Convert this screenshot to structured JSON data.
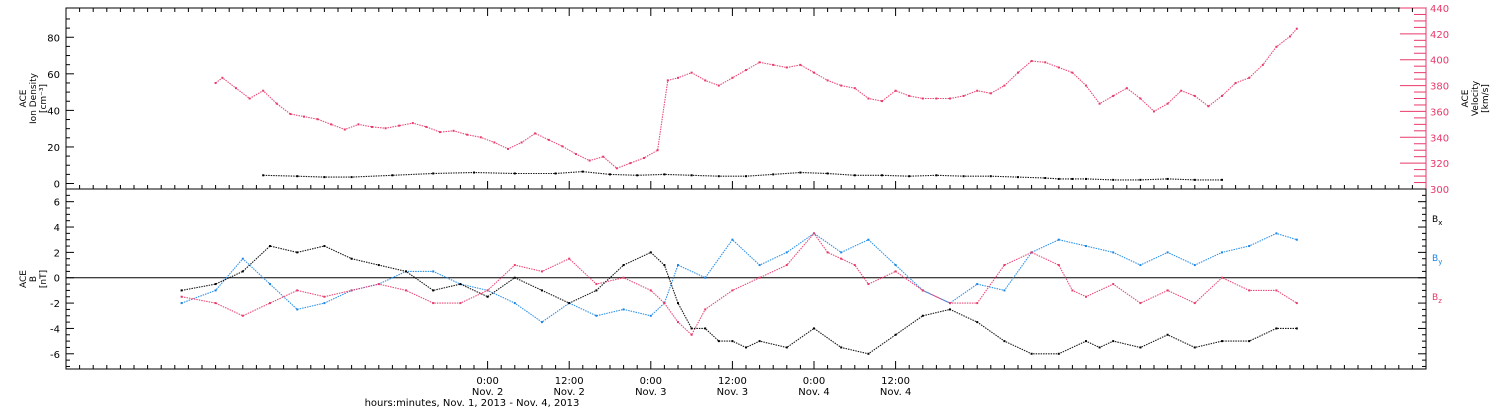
{
  "chart_data": [
    {
      "type": "scatter",
      "ylabel_lines": [
        "ACE",
        "Ion Density",
        "[cm⁻³]"
      ],
      "y2label_lines": [
        "ACE",
        "Velocity",
        "[km/s]"
      ],
      "ylim": [
        -3,
        96
      ],
      "yticks": [
        0,
        20,
        40,
        60,
        80
      ],
      "y2lim": [
        300,
        440
      ],
      "y2ticks": [
        300,
        320,
        340,
        360,
        380,
        400,
        420,
        440
      ],
      "series": [
        {
          "axis": "left",
          "color": "#000000",
          "points": [
            [
              -33,
              4.5
            ],
            [
              -28,
              4
            ],
            [
              -24,
              3.5
            ],
            [
              -20,
              3.5
            ],
            [
              -14,
              4.5
            ],
            [
              -8,
              5.5
            ],
            [
              -2,
              6
            ],
            [
              4,
              5.5
            ],
            [
              10,
              5.5
            ],
            [
              14,
              6.5
            ],
            [
              18,
              5
            ],
            [
              22,
              4.5
            ],
            [
              26,
              5
            ],
            [
              30,
              4.5
            ],
            [
              34,
              4
            ],
            [
              38,
              4
            ],
            [
              42,
              5
            ],
            [
              46,
              6
            ],
            [
              50,
              5.5
            ],
            [
              54,
              4.5
            ],
            [
              58,
              4.5
            ],
            [
              62,
              4
            ],
            [
              66,
              4.5
            ],
            [
              70,
              4
            ],
            [
              74,
              4
            ],
            [
              78,
              3.5
            ],
            [
              82,
              3
            ],
            [
              84,
              2.5
            ],
            [
              86,
              2.5
            ],
            [
              88,
              2.5
            ],
            [
              92,
              2
            ],
            [
              96,
              2
            ],
            [
              100,
              2.5
            ],
            [
              104,
              2
            ],
            [
              108,
              2
            ]
          ]
        },
        {
          "axis": "right",
          "color": "#e8396a",
          "points": [
            [
              -40,
              382
            ],
            [
              -39,
              386
            ],
            [
              -37,
              378
            ],
            [
              -35,
              370
            ],
            [
              -33,
              376
            ],
            [
              -31,
              366
            ],
            [
              -29,
              358
            ],
            [
              -27,
              356
            ],
            [
              -25,
              354
            ],
            [
              -23,
              350
            ],
            [
              -21,
              346
            ],
            [
              -19,
              350
            ],
            [
              -17,
              348
            ],
            [
              -15,
              347
            ],
            [
              -13,
              349
            ],
            [
              -11,
              351
            ],
            [
              -9,
              348
            ],
            [
              -7,
              344
            ],
            [
              -5,
              345
            ],
            [
              -3,
              342
            ],
            [
              -1,
              340
            ],
            [
              1,
              336
            ],
            [
              3,
              331
            ],
            [
              5,
              336
            ],
            [
              7,
              343
            ],
            [
              9,
              338
            ],
            [
              11,
              333
            ],
            [
              13,
              327
            ],
            [
              15,
              322
            ],
            [
              17,
              325
            ],
            [
              19,
              316
            ],
            [
              21,
              320
            ],
            [
              23,
              324
            ],
            [
              25,
              330
            ],
            [
              26.5,
              384
            ],
            [
              28,
              386
            ],
            [
              30,
              390
            ],
            [
              32,
              384
            ],
            [
              34,
              380
            ],
            [
              36,
              386
            ],
            [
              38,
              392
            ],
            [
              40,
              398
            ],
            [
              42,
              396
            ],
            [
              44,
              394
            ],
            [
              46,
              396
            ],
            [
              48,
              390
            ],
            [
              50,
              384
            ],
            [
              52,
              380
            ],
            [
              54,
              378
            ],
            [
              56,
              370
            ],
            [
              58,
              368
            ],
            [
              60,
              376
            ],
            [
              62,
              372
            ],
            [
              64,
              370
            ],
            [
              66,
              370
            ],
            [
              68,
              370
            ],
            [
              70,
              372
            ],
            [
              72,
              376
            ],
            [
              74,
              374
            ],
            [
              76,
              380
            ],
            [
              78,
              390
            ],
            [
              80,
              399
            ],
            [
              82,
              398
            ],
            [
              84,
              394
            ],
            [
              86,
              390
            ],
            [
              88,
              380
            ],
            [
              90,
              366
            ],
            [
              92,
              372
            ],
            [
              94,
              378
            ],
            [
              96,
              370
            ],
            [
              98,
              360
            ],
            [
              100,
              366
            ],
            [
              102,
              376
            ],
            [
              104,
              372
            ],
            [
              106,
              364
            ],
            [
              108,
              372
            ],
            [
              110,
              382
            ],
            [
              112,
              386
            ],
            [
              114,
              396
            ],
            [
              116,
              410
            ],
            [
              118,
              418
            ],
            [
              119,
              424
            ]
          ]
        }
      ]
    },
    {
      "type": "scatter",
      "ylabel_lines": [
        "ACE",
        "B",
        "[nT]"
      ],
      "ylim": [
        -7.2,
        7
      ],
      "yticks": [
        -6,
        -4,
        -2,
        0,
        2,
        4,
        6
      ],
      "zero_line": true,
      "series": [
        {
          "name": "Bx",
          "label_main": "B",
          "label_sub": "x",
          "color": "#000000",
          "points": [
            [
              -45,
              -1
            ],
            [
              -40,
              -0.5
            ],
            [
              -36,
              0.5
            ],
            [
              -32,
              2.5
            ],
            [
              -28,
              2
            ],
            [
              -24,
              2.5
            ],
            [
              -20,
              1.5
            ],
            [
              -16,
              1
            ],
            [
              -12,
              0.5
            ],
            [
              -8,
              -1
            ],
            [
              -4,
              -0.5
            ],
            [
              0,
              -1.5
            ],
            [
              4,
              0
            ],
            [
              8,
              -1
            ],
            [
              12,
              -2
            ],
            [
              16,
              -1
            ],
            [
              20,
              1
            ],
            [
              24,
              2
            ],
            [
              26,
              1
            ],
            [
              28,
              -2
            ],
            [
              30,
              -4
            ],
            [
              32,
              -4
            ],
            [
              34,
              -5
            ],
            [
              36,
              -5
            ],
            [
              38,
              -5.5
            ],
            [
              40,
              -5
            ],
            [
              44,
              -5.5
            ],
            [
              48,
              -4
            ],
            [
              52,
              -5.5
            ],
            [
              56,
              -6
            ],
            [
              60,
              -4.5
            ],
            [
              64,
              -3
            ],
            [
              68,
              -2.5
            ],
            [
              72,
              -3.5
            ],
            [
              76,
              -5
            ],
            [
              80,
              -6
            ],
            [
              84,
              -6
            ],
            [
              88,
              -5
            ],
            [
              90,
              -5.5
            ],
            [
              92,
              -5
            ],
            [
              96,
              -5.5
            ],
            [
              100,
              -4.5
            ],
            [
              104,
              -5.5
            ],
            [
              108,
              -5
            ],
            [
              112,
              -5
            ],
            [
              116,
              -4
            ],
            [
              119,
              -4
            ]
          ]
        },
        {
          "name": "By",
          "label_main": "B",
          "label_sub": "y",
          "color": "#1a86e6",
          "points": [
            [
              -45,
              -2
            ],
            [
              -40,
              -1
            ],
            [
              -36,
              1.5
            ],
            [
              -32,
              -0.5
            ],
            [
              -28,
              -2.5
            ],
            [
              -24,
              -2
            ],
            [
              -20,
              -1
            ],
            [
              -16,
              -0.5
            ],
            [
              -12,
              0.5
            ],
            [
              -8,
              0.5
            ],
            [
              -4,
              -0.5
            ],
            [
              0,
              -1
            ],
            [
              4,
              -2
            ],
            [
              8,
              -3.5
            ],
            [
              12,
              -2
            ],
            [
              16,
              -3
            ],
            [
              20,
              -2.5
            ],
            [
              24,
              -3
            ],
            [
              26,
              -2
            ],
            [
              28,
              1
            ],
            [
              32,
              0
            ],
            [
              36,
              3
            ],
            [
              40,
              1
            ],
            [
              44,
              2
            ],
            [
              48,
              3.5
            ],
            [
              52,
              2
            ],
            [
              56,
              3
            ],
            [
              60,
              1
            ],
            [
              64,
              -1
            ],
            [
              68,
              -2
            ],
            [
              72,
              -0.5
            ],
            [
              76,
              -1
            ],
            [
              80,
              2
            ],
            [
              84,
              3
            ],
            [
              88,
              2.5
            ],
            [
              92,
              2
            ],
            [
              96,
              1
            ],
            [
              100,
              2
            ],
            [
              104,
              1
            ],
            [
              108,
              2
            ],
            [
              112,
              2.5
            ],
            [
              116,
              3.5
            ],
            [
              119,
              3
            ]
          ]
        },
        {
          "name": "Bz",
          "label_main": "B",
          "label_sub": "z",
          "color": "#e8396a",
          "points": [
            [
              -45,
              -1.5
            ],
            [
              -40,
              -2
            ],
            [
              -36,
              -3
            ],
            [
              -32,
              -2
            ],
            [
              -28,
              -1
            ],
            [
              -24,
              -1.5
            ],
            [
              -20,
              -1
            ],
            [
              -16,
              -0.5
            ],
            [
              -12,
              -1
            ],
            [
              -8,
              -2
            ],
            [
              -4,
              -2
            ],
            [
              0,
              -1
            ],
            [
              4,
              1
            ],
            [
              8,
              0.5
            ],
            [
              12,
              1.5
            ],
            [
              16,
              -0.5
            ],
            [
              20,
              0
            ],
            [
              24,
              -1
            ],
            [
              26,
              -2
            ],
            [
              28,
              -3.5
            ],
            [
              30,
              -4.5
            ],
            [
              32,
              -2.5
            ],
            [
              36,
              -1
            ],
            [
              40,
              0
            ],
            [
              44,
              1
            ],
            [
              48,
              3.5
            ],
            [
              50,
              2
            ],
            [
              52,
              1.5
            ],
            [
              54,
              1
            ],
            [
              56,
              -0.5
            ],
            [
              60,
              0.5
            ],
            [
              64,
              -1
            ],
            [
              68,
              -2
            ],
            [
              72,
              -2
            ],
            [
              76,
              1
            ],
            [
              80,
              2
            ],
            [
              84,
              1
            ],
            [
              86,
              -1
            ],
            [
              88,
              -1.5
            ],
            [
              92,
              -0.5
            ],
            [
              96,
              -2
            ],
            [
              100,
              -1
            ],
            [
              104,
              -2
            ],
            [
              108,
              0
            ],
            [
              112,
              -1
            ],
            [
              116,
              -1
            ],
            [
              119,
              -2
            ]
          ]
        }
      ]
    }
  ],
  "x_axis": {
    "xlim": [
      -62,
      138
    ],
    "ticks": [
      {
        "x": 0,
        "time": "0:00",
        "date": "Nov. 2"
      },
      {
        "x": 12,
        "time": "12:00",
        "date": "Nov. 2"
      },
      {
        "x": 24,
        "time": "0:00",
        "date": "Nov. 3"
      },
      {
        "x": 36,
        "time": "12:00",
        "date": "Nov. 3"
      },
      {
        "x": 48,
        "time": "0:00",
        "date": "Nov. 4"
      },
      {
        "x": 60,
        "time": "12:00",
        "date": "Nov. 4"
      }
    ],
    "xlabel": "hours:minutes, Nov.  1, 2013 - Nov.  4, 2013"
  }
}
